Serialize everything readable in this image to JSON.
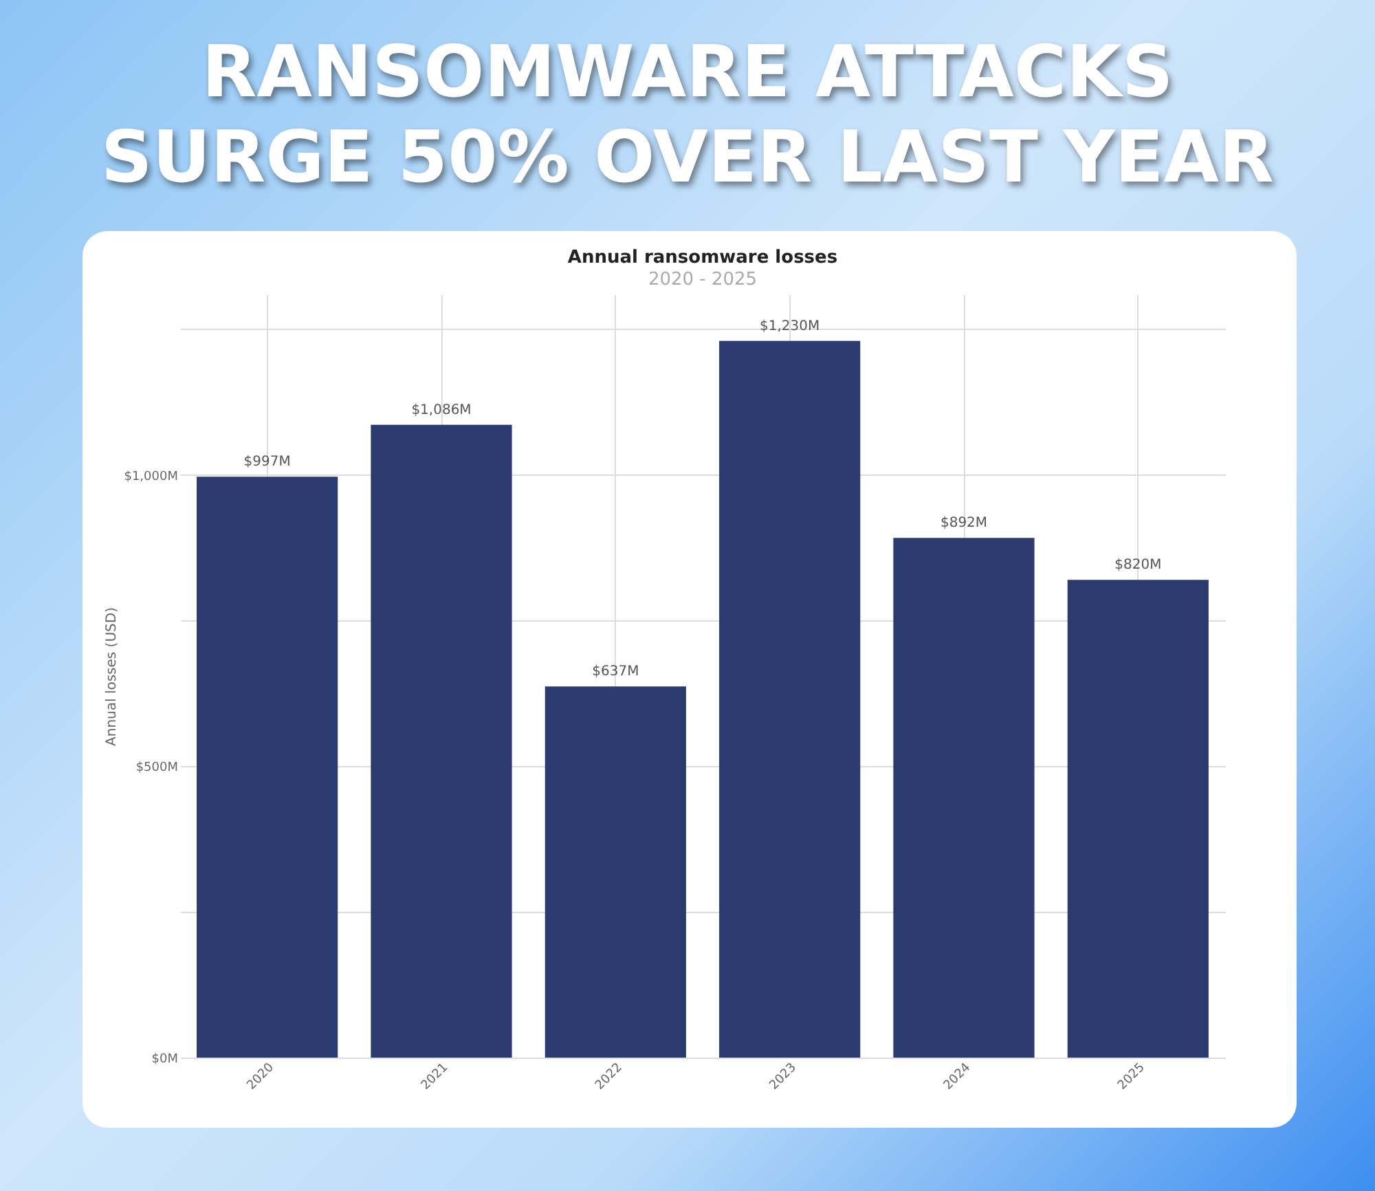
{
  "chart_data": {
    "type": "bar",
    "title": "RANSOMWARE ATTACKS SURGE 50% OVER LAST YEAR",
    "subtitle": "Annual ransomware losses",
    "annotations": [
      "2020 - 2025"
    ],
    "ylabel": "Annual losses (USD)",
    "categories": [
      "2020",
      "2021",
      "2022",
      "2023",
      "2024",
      "2025"
    ],
    "values": [
      997,
      1086,
      637,
      1230,
      892,
      820
    ],
    "value_labels": [
      "$997M",
      "$1,086M",
      "$637M",
      "$1,230M",
      "$892M",
      "$820M"
    ],
    "color": "#2b3a6f",
    "ylim": [
      0,
      1310
    ],
    "yticks": [
      {
        "value": 0,
        "label": "$0M"
      },
      {
        "value": 250,
        "label": null
      },
      {
        "value": 500,
        "label": "$500M"
      },
      {
        "value": 750,
        "label": null
      },
      {
        "value": 1000,
        "label": "$1,000M"
      },
      {
        "value": 1250,
        "label": null
      }
    ],
    "grid": true
  }
}
